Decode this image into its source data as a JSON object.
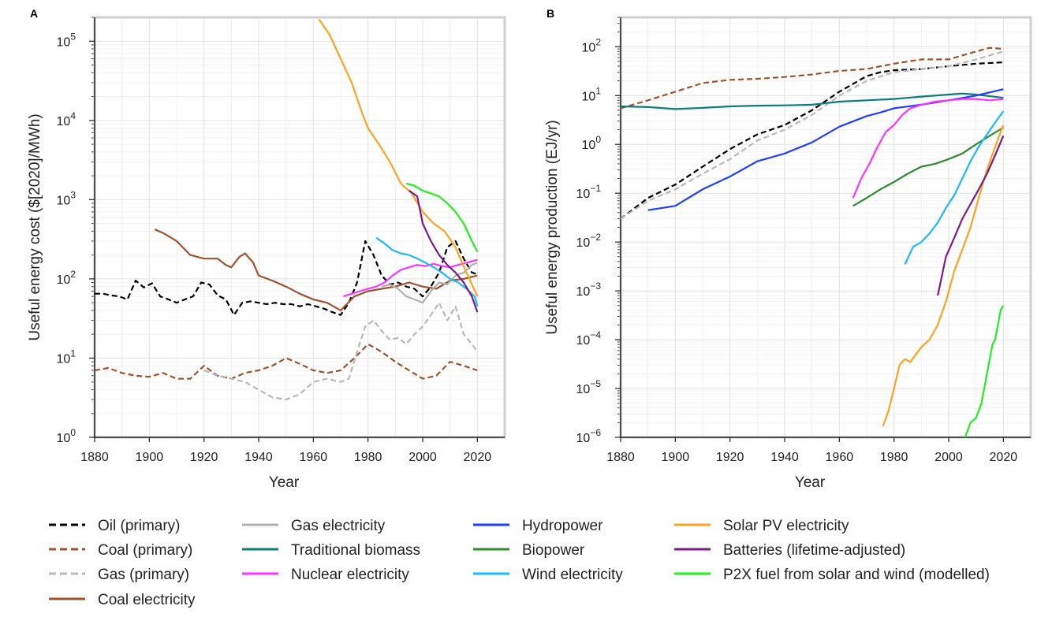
{
  "colors": {
    "oil": "#000000",
    "coal_primary": "#a0522d",
    "gas_primary": "#b8b8b8",
    "coal_elec": "#a0522d",
    "gas_elec": "#b0b0b0",
    "trad_biomass": "#0e7c7b",
    "nuclear": "#ff33ff",
    "hydro": "#1f3fff",
    "biopower": "#2e8b2e",
    "wind": "#1ab8ff",
    "solar": "#ffa21f",
    "batteries": "#7a1b8c",
    "p2x": "#22ee22"
  },
  "legend": [
    {
      "key": "oil",
      "label": "Oil (primary)",
      "dashed": true
    },
    {
      "key": "coal_primary",
      "label": "Coal (primary)",
      "dashed": true
    },
    {
      "key": "gas_primary",
      "label": "Gas (primary)",
      "dashed": true
    },
    {
      "key": "coal_elec",
      "label": "Coal electricity",
      "dashed": false
    },
    {
      "key": "gas_elec",
      "label": "Gas electricity",
      "dashed": false
    },
    {
      "key": "trad_biomass",
      "label": "Traditional biomass",
      "dashed": false
    },
    {
      "key": "nuclear",
      "label": "Nuclear electricity",
      "dashed": false
    },
    {
      "key": "hydro",
      "label": "Hydropower",
      "dashed": false
    },
    {
      "key": "biopower",
      "label": "Biopower",
      "dashed": false
    },
    {
      "key": "wind",
      "label": "Wind electricity",
      "dashed": false
    },
    {
      "key": "solar",
      "label": "Solar PV electricity",
      "dashed": false
    },
    {
      "key": "batteries",
      "label": "Batteries (lifetime-adjusted)",
      "dashed": false
    },
    {
      "key": "p2x",
      "label": "P2X fuel from solar and wind (modelled)",
      "dashed": false
    }
  ],
  "chart_data": [
    {
      "panel": "A",
      "type": "line",
      "xlabel": "Year",
      "ylabel": "Useful energy cost ($[2020]/MWh)",
      "xlim": [
        1880,
        2030
      ],
      "ylim": [
        1,
        200000
      ],
      "yscale": "log",
      "xticks": [
        1880,
        1900,
        1920,
        1940,
        1960,
        1980,
        2000,
        2020
      ],
      "yticks": [
        {
          "base": "10",
          "exp": "0",
          "value": 1
        },
        {
          "base": "10",
          "exp": "1",
          "value": 10
        },
        {
          "base": "10",
          "exp": "2",
          "value": 100
        },
        {
          "base": "10",
          "exp": "3",
          "value": 1000
        },
        {
          "base": "10",
          "exp": "4",
          "value": 10000
        },
        {
          "base": "10",
          "exp": "5",
          "value": 100000
        }
      ],
      "grid": true,
      "series": [
        {
          "key": "oil",
          "dashed": true,
          "x": [
            1880,
            1883,
            1886,
            1889,
            1892,
            1895,
            1898,
            1901,
            1904,
            1907,
            1910,
            1913,
            1916,
            1919,
            1922,
            1925,
            1928,
            1931,
            1934,
            1937,
            1940,
            1943,
            1946,
            1949,
            1952,
            1955,
            1958,
            1961,
            1964,
            1967,
            1970,
            1973,
            1976,
            1979,
            1982,
            1985,
            1988,
            1991,
            1994,
            1997,
            2000,
            2003,
            2006,
            2009,
            2012,
            2015,
            2018,
            2020
          ],
          "y": [
            65,
            65,
            62,
            60,
            55,
            95,
            78,
            88,
            60,
            55,
            50,
            55,
            60,
            90,
            85,
            62,
            55,
            35,
            50,
            52,
            50,
            48,
            50,
            48,
            48,
            45,
            48,
            45,
            42,
            38,
            35,
            50,
            90,
            300,
            200,
            110,
            85,
            90,
            80,
            75,
            60,
            80,
            120,
            250,
            300,
            180,
            120,
            115
          ]
        },
        {
          "key": "coal_primary",
          "dashed": true,
          "x": [
            1880,
            1885,
            1890,
            1895,
            1900,
            1905,
            1910,
            1915,
            1920,
            1925,
            1930,
            1935,
            1940,
            1945,
            1950,
            1955,
            1960,
            1965,
            1970,
            1975,
            1980,
            1985,
            1990,
            1995,
            2000,
            2005,
            2010,
            2015,
            2020
          ],
          "y": [
            7,
            7.5,
            6.5,
            6,
            5.8,
            6.5,
            5.5,
            5.5,
            8,
            6,
            5.5,
            6.5,
            7,
            8,
            10,
            8.5,
            7,
            6.5,
            7,
            10,
            15,
            12,
            9,
            7,
            5.5,
            6,
            9,
            8,
            7
          ]
        },
        {
          "key": "gas_primary",
          "dashed": true,
          "x": [
            1920,
            1925,
            1930,
            1935,
            1940,
            1945,
            1950,
            1955,
            1960,
            1965,
            1970,
            1973,
            1976,
            1979,
            1982,
            1985,
            1988,
            1991,
            1994,
            1997,
            2000,
            2003,
            2006,
            2009,
            2012,
            2015,
            2018,
            2020
          ],
          "y": [
            7,
            6,
            5.5,
            5,
            4,
            3.2,
            3,
            3.5,
            5,
            5.5,
            5,
            5.5,
            12,
            25,
            30,
            22,
            17,
            18,
            15,
            20,
            25,
            35,
            50,
            30,
            45,
            20,
            15,
            12
          ]
        },
        {
          "key": "coal_elec",
          "dashed": false,
          "x": [
            1902,
            1905,
            1910,
            1915,
            1920,
            1925,
            1928,
            1930,
            1933,
            1935,
            1938,
            1940,
            1945,
            1950,
            1955,
            1960,
            1965,
            1970,
            1975,
            1980,
            1985,
            1990,
            1995,
            2000,
            2005,
            2010,
            2015,
            2020
          ],
          "y": [
            420,
            380,
            300,
            200,
            180,
            180,
            150,
            140,
            190,
            210,
            160,
            110,
            95,
            80,
            65,
            55,
            50,
            40,
            60,
            70,
            75,
            80,
            90,
            80,
            75,
            95,
            100,
            110
          ]
        },
        {
          "key": "gas_elec",
          "dashed": false,
          "x": [
            1985,
            1988,
            1991,
            1994,
            1997,
            2000,
            2003,
            2006,
            2009,
            2012,
            2015,
            2018,
            2020
          ],
          "y": [
            80,
            85,
            75,
            60,
            55,
            50,
            70,
            90,
            85,
            110,
            120,
            150,
            160
          ]
        },
        {
          "key": "nuclear",
          "dashed": false,
          "x": [
            1971,
            1974,
            1977,
            1980,
            1983,
            1986,
            1989,
            1992,
            1995,
            1998,
            2001,
            2004,
            2007,
            2010,
            2013,
            2016,
            2019,
            2020
          ],
          "y": [
            60,
            65,
            70,
            75,
            80,
            90,
            110,
            130,
            140,
            150,
            145,
            155,
            145,
            140,
            150,
            160,
            170,
            175
          ]
        },
        {
          "key": "wind",
          "dashed": false,
          "x": [
            1983,
            1986,
            1989,
            1992,
            1995,
            1998,
            2001,
            2004,
            2007,
            2010,
            2013,
            2016,
            2019,
            2020
          ],
          "y": [
            330,
            280,
            230,
            210,
            200,
            180,
            160,
            140,
            120,
            100,
            90,
            75,
            60,
            45
          ]
        },
        {
          "key": "solar",
          "dashed": false,
          "x": [
            1962,
            1966,
            1970,
            1974,
            1978,
            1980,
            1984,
            1988,
            1992,
            1996,
            2000,
            2004,
            2008,
            2012,
            2016,
            2020
          ],
          "y": [
            190000,
            120000,
            60000,
            30000,
            12000,
            8000,
            5000,
            3000,
            1600,
            1200,
            700,
            500,
            400,
            250,
            120,
            60
          ]
        },
        {
          "key": "batteries",
          "dashed": false,
          "x": [
            1995,
            1998,
            2000,
            2003,
            2006,
            2009,
            2012,
            2015,
            2018,
            2020
          ],
          "y": [
            1300,
            1100,
            500,
            300,
            200,
            150,
            120,
            90,
            60,
            38
          ]
        },
        {
          "key": "p2x",
          "dashed": false,
          "x": [
            1994,
            1997,
            2000,
            2003,
            2006,
            2009,
            2012,
            2015,
            2018,
            2020
          ],
          "y": [
            1600,
            1500,
            1300,
            1200,
            1100,
            900,
            700,
            500,
            300,
            220
          ]
        }
      ]
    },
    {
      "panel": "B",
      "type": "line",
      "xlabel": "Year",
      "ylabel": "Useful energy production (EJ/yr)",
      "xlim": [
        1880,
        2030
      ],
      "ylim": [
        1e-06,
        400
      ],
      "yscale": "log",
      "xticks": [
        1880,
        1900,
        1920,
        1940,
        1960,
        1980,
        2000,
        2020
      ],
      "yticks": [
        {
          "base": "10",
          "exp": "−6",
          "value": 1e-06
        },
        {
          "base": "10",
          "exp": "−5",
          "value": 1e-05
        },
        {
          "base": "10",
          "exp": "−4",
          "value": 0.0001
        },
        {
          "base": "10",
          "exp": "−3",
          "value": 0.001
        },
        {
          "base": "10",
          "exp": "−2",
          "value": 0.01
        },
        {
          "base": "10",
          "exp": "−1",
          "value": 0.1
        },
        {
          "base": "10",
          "exp": "0",
          "value": 1
        },
        {
          "base": "10",
          "exp": "1",
          "value": 10
        },
        {
          "base": "10",
          "exp": "2",
          "value": 100
        }
      ],
      "grid": true,
      "series": [
        {
          "key": "oil",
          "dashed": true,
          "x": [
            1880,
            1890,
            1900,
            1910,
            1920,
            1930,
            1940,
            1950,
            1960,
            1970,
            1975,
            1980,
            1990,
            2000,
            2010,
            2020
          ],
          "y": [
            0.03,
            0.08,
            0.15,
            0.35,
            0.8,
            1.6,
            2.5,
            5,
            12,
            25,
            30,
            33,
            35,
            40,
            45,
            48
          ]
        },
        {
          "key": "coal_primary",
          "dashed": true,
          "x": [
            1880,
            1890,
            1900,
            1910,
            1920,
            1930,
            1940,
            1950,
            1960,
            1970,
            1980,
            1990,
            2000,
            2010,
            2015,
            2020
          ],
          "y": [
            5.5,
            8,
            12,
            18,
            21,
            22,
            24,
            27,
            32,
            35,
            45,
            55,
            55,
            80,
            95,
            90
          ]
        },
        {
          "key": "gas_primary",
          "dashed": true,
          "x": [
            1880,
            1890,
            1900,
            1910,
            1920,
            1930,
            1940,
            1950,
            1960,
            1970,
            1980,
            1990,
            2000,
            2010,
            2020
          ],
          "y": [
            0.03,
            0.07,
            0.12,
            0.25,
            0.5,
            1.2,
            2,
            4,
            10,
            20,
            30,
            35,
            40,
            55,
            80
          ]
        },
        {
          "key": "trad_biomass",
          "dashed": false,
          "x": [
            1880,
            1890,
            1900,
            1910,
            1920,
            1930,
            1940,
            1950,
            1960,
            1970,
            1980,
            1990,
            2000,
            2005,
            2010,
            2020
          ],
          "y": [
            6,
            5.8,
            5.3,
            5.6,
            6,
            6.2,
            6.3,
            6.5,
            7.5,
            8,
            8.5,
            9.5,
            10.5,
            11,
            10.5,
            9
          ]
        },
        {
          "key": "hydro",
          "dashed": false,
          "x": [
            1890,
            1900,
            1910,
            1920,
            1930,
            1940,
            1950,
            1960,
            1970,
            1975,
            1980,
            1990,
            2000,
            2010,
            2020
          ],
          "y": [
            0.045,
            0.055,
            0.12,
            0.22,
            0.45,
            0.65,
            1.1,
            2.3,
            3.8,
            4.5,
            5.5,
            6.5,
            8,
            10,
            13.5
          ]
        },
        {
          "key": "nuclear",
          "dashed": false,
          "x": [
            1965,
            1968,
            1971,
            1974,
            1977,
            1980,
            1983,
            1986,
            1990,
            1995,
            2000,
            2005,
            2010,
            2015,
            2020
          ],
          "y": [
            0.08,
            0.2,
            0.4,
            0.9,
            1.8,
            2.5,
            4,
            5.5,
            6.5,
            7.5,
            8,
            8.5,
            8.5,
            8,
            8.5
          ]
        },
        {
          "key": "biopower",
          "dashed": false,
          "x": [
            1965,
            1970,
            1975,
            1980,
            1985,
            1990,
            1995,
            2000,
            2005,
            2010,
            2015,
            2020
          ],
          "y": [
            0.055,
            0.08,
            0.12,
            0.17,
            0.25,
            0.35,
            0.4,
            0.5,
            0.65,
            1,
            1.5,
            2.2
          ]
        },
        {
          "key": "wind",
          "dashed": false,
          "x": [
            1984,
            1987,
            1990,
            1993,
            1996,
            1999,
            2002,
            2005,
            2008,
            2011,
            2014,
            2017,
            2020
          ],
          "y": [
            0.0035,
            0.008,
            0.01,
            0.015,
            0.025,
            0.05,
            0.09,
            0.2,
            0.45,
            0.9,
            1.6,
            2.8,
            4.8
          ]
        },
        {
          "key": "solar",
          "dashed": false,
          "x": [
            1976,
            1978,
            1980,
            1982,
            1984,
            1986,
            1988,
            1990,
            1993,
            1996,
            1999,
            2002,
            2005,
            2008,
            2011,
            2014,
            2017,
            2020
          ],
          "y": [
            1.7e-06,
            3.5e-06,
            1e-05,
            3e-05,
            4e-05,
            3.5e-05,
            5e-05,
            7e-05,
            0.0001,
            0.0002,
            0.0006,
            0.0025,
            0.007,
            0.02,
            0.08,
            0.3,
            0.9,
            2.5
          ]
        },
        {
          "key": "batteries",
          "dashed": false,
          "x": [
            1996,
            1999,
            2002,
            2005,
            2008,
            2011,
            2014,
            2017,
            2020
          ],
          "y": [
            0.0008,
            0.005,
            0.012,
            0.03,
            0.06,
            0.12,
            0.25,
            0.6,
            1.5
          ]
        },
        {
          "key": "p2x",
          "dashed": false,
          "x": [
            2006,
            2008,
            2010,
            2012,
            2014,
            2016,
            2017,
            2018,
            2019,
            2020
          ],
          "y": [
            1e-06,
            2e-06,
            2.5e-06,
            5e-06,
            2e-05,
            8e-05,
            0.0001,
            0.0002,
            0.0004,
            0.0005
          ]
        }
      ]
    }
  ]
}
